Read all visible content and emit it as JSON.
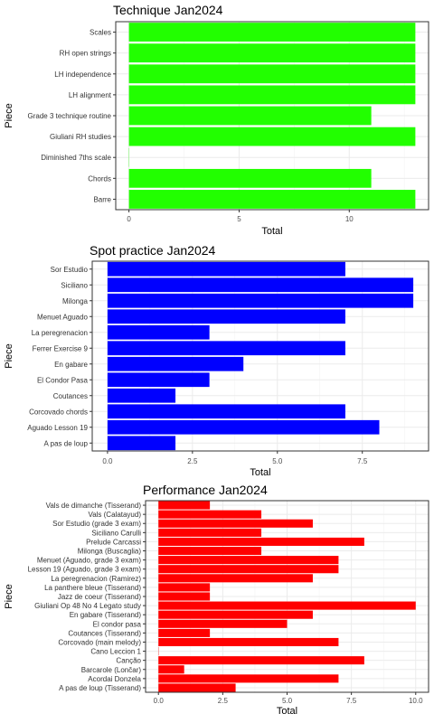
{
  "chart_data": [
    {
      "type": "bar",
      "orientation": "horizontal",
      "title": "Technique Jan2024",
      "xlabel": "Total",
      "ylabel": "Piece",
      "xlim": [
        -0.6,
        13.6
      ],
      "xticks": [
        0,
        5,
        10
      ],
      "xtick_labels": [
        "0",
        "5",
        "10"
      ],
      "grid": true,
      "color": "#22ff00",
      "categories": [
        "Barre",
        "Chords",
        "Diminished 7ths scale",
        "Giuliani RH studies",
        "Grade 3 technique routine",
        "LH alignment",
        "LH independence",
        "RH open strings",
        "Scales"
      ],
      "values": [
        13,
        11,
        0,
        13,
        11,
        13,
        13,
        13,
        13
      ]
    },
    {
      "type": "bar",
      "orientation": "horizontal",
      "title": "Spot practice Jan2024",
      "xlabel": "Total",
      "ylabel": "Piece",
      "xlim": [
        -0.45,
        9.45
      ],
      "xticks": [
        0,
        2.5,
        5,
        7.5
      ],
      "xtick_labels": [
        "0.0",
        "2.5",
        "5.0",
        "7.5"
      ],
      "grid": true,
      "color": "#0000ff",
      "categories": [
        "A pas de loup",
        "Aguado Lesson 19",
        "Corcovado chords",
        "Coutances",
        "El Condor Pasa",
        "En gabare",
        "Ferrer Exercise 9",
        "La peregrenacion",
        "Menuet Aguado",
        "Milonga",
        "Siciliano",
        "Sor Estudio"
      ],
      "values": [
        2,
        8,
        7,
        2,
        3,
        4,
        7,
        3,
        7,
        9,
        9,
        7
      ]
    },
    {
      "type": "bar",
      "orientation": "horizontal",
      "title": "Performance Jan2024",
      "xlabel": "Total",
      "ylabel": "Piece",
      "xlim": [
        -0.5,
        10.5
      ],
      "xticks": [
        0,
        2.5,
        5,
        7.5,
        10
      ],
      "xtick_labels": [
        "0.0",
        "2.5",
        "5.0",
        "7.5",
        "10.0"
      ],
      "grid": true,
      "color": "#ff0000",
      "categories": [
        "A pas de loup (Tisserand)",
        "Acordai Donzela",
        "Barcarole (Lončar)",
        "Canção",
        "Cano Leccion 1",
        "Corcovado (main melody)",
        "Coutances (Tisserand)",
        "El condor pasa",
        "En gabare (Tisserand)",
        "Giuliani Op 48 No 4 Legato study",
        "Jazz de coeur (Tisserand)",
        "La panthere bleue (Tisserand)",
        "La peregrenacion (Ramirez)",
        "Lesson 19 (Aguado, grade 3 exam)",
        "Menuet (Aguado, grade 3 exam)",
        "Milonga (Buscaglia)",
        "Prelude Carcassi",
        "Siciliano Carulli",
        "Sor Estudio (grade 3 exam)",
        "Vals (Calatayud)",
        "Vals de dimanche (Tisserand)"
      ],
      "values": [
        3,
        7,
        1,
        8,
        0,
        7,
        2,
        5,
        6,
        10,
        2,
        2,
        6,
        7,
        7,
        4,
        8,
        4,
        6,
        4,
        2
      ]
    }
  ]
}
